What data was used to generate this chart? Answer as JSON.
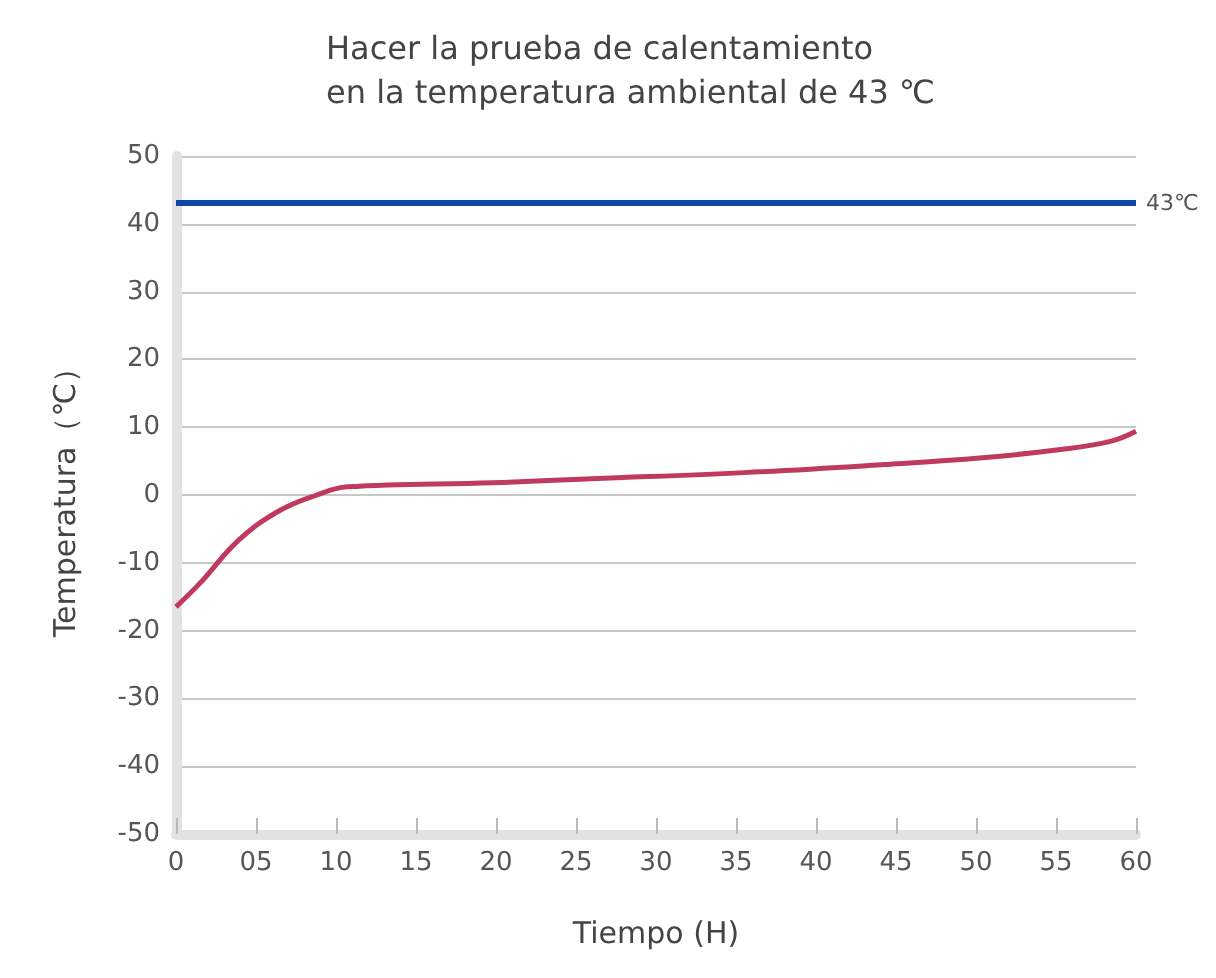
{
  "chart_data": {
    "type": "line",
    "title": "Hacer la prueba de calentamiento\nen la temperatura ambiental de 43 ℃",
    "xlabel": "Tiempo (H)",
    "ylabel": "Temperatura（℃）",
    "x": [
      0,
      1.5,
      3.9,
      6.4,
      8.8,
      10.7,
      19.8,
      26,
      35.5,
      44.3,
      50.4,
      55.3,
      58.4,
      60
    ],
    "series": [
      {
        "color": "#c0395f",
        "values": [
          -16.5,
          -13,
          -6.7,
          -2.4,
          0,
          1.2,
          1.8,
          2.4,
          3.3,
          4.5,
          5.5,
          6.7,
          7.9,
          9.4
        ]
      }
    ],
    "xlim": [
      0,
      60
    ],
    "xticks": [
      0,
      {
        "value": 5,
        "label": "05"
      },
      10,
      15,
      20,
      25,
      30,
      35,
      40,
      45,
      50,
      55,
      60
    ],
    "ylim": [
      -50,
      50
    ],
    "yticks": [
      -50,
      -40,
      -30,
      -20,
      -10,
      0,
      10,
      20,
      30,
      40,
      50
    ],
    "ref_lines": [
      {
        "axis": "y",
        "value": 43,
        "label": "43℃",
        "color": "#0d47a1"
      }
    ],
    "grid": "y",
    "marker": "none",
    "line_style": "solid"
  }
}
